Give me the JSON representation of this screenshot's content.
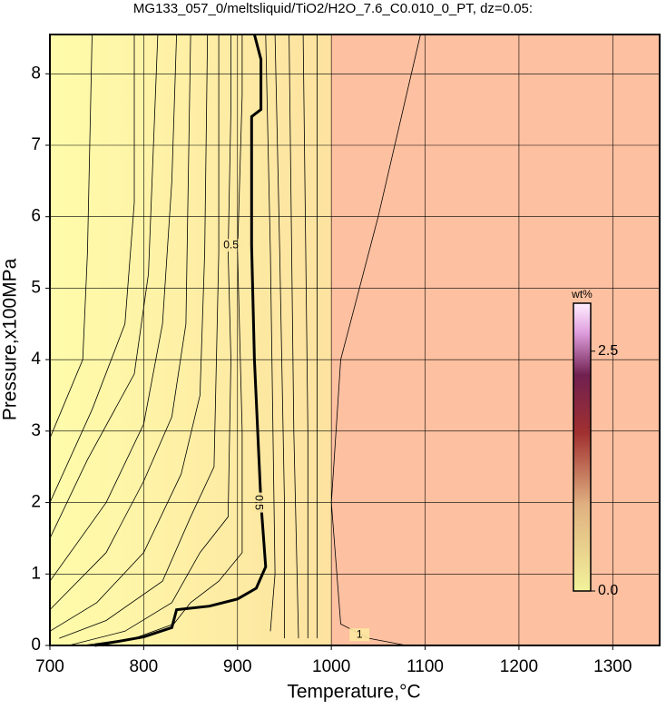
{
  "chart_data": {
    "type": "contour",
    "title": "MG133_057_0/meltsliquid/TiO2/H2O_7.6_C0.010_0_PT, dz=0.05:",
    "x_label": "Temperature,°C",
    "y_label": "Pressure,x100MPa",
    "xlim": [
      700,
      1350
    ],
    "ylim": [
      0,
      8.55
    ],
    "xticks": [
      700,
      800,
      900,
      1000,
      1100,
      1200,
      1300
    ],
    "yticks": [
      0,
      1,
      2,
      3,
      4,
      5,
      6,
      7,
      8
    ],
    "grid": true,
    "colorbar": {
      "label": "wt%",
      "clim": [
        0,
        3.0
      ],
      "ticks": [
        {
          "value": 0,
          "label": "0.0"
        },
        2.5
      ]
    },
    "contours": [
      {
        "level": 0.05,
        "x": [
          700,
          735,
          740,
          745
        ],
        "y": [
          2.9,
          4.0,
          5.5,
          8.55
        ]
      },
      {
        "level": 0.1,
        "x": [
          700,
          745,
          780,
          790,
          790
        ],
        "y": [
          2.0,
          3.3,
          4.5,
          6.2,
          8.55
        ]
      },
      {
        "level": 0.15,
        "x": [
          700,
          740,
          790,
          805,
          815
        ],
        "y": [
          1.5,
          2.6,
          3.8,
          5.2,
          8.55
        ]
      },
      {
        "level": 0.2,
        "x": [
          700,
          760,
          800,
          820,
          830,
          835
        ],
        "y": [
          0.9,
          2.0,
          3.1,
          4.5,
          6.5,
          8.55
        ]
      },
      {
        "level": 0.25,
        "x": [
          700,
          760,
          800,
          830,
          845,
          850
        ],
        "y": [
          0.5,
          1.3,
          2.3,
          3.2,
          4.5,
          8.55
        ]
      },
      {
        "level": 0.3,
        "x": [
          700,
          750,
          800,
          840,
          860,
          865,
          868
        ],
        "y": [
          0.2,
          0.6,
          1.3,
          2.4,
          3.5,
          5.5,
          8.55
        ]
      },
      {
        "level": 0.35,
        "x": [
          710,
          760,
          820,
          850,
          875,
          880,
          880
        ],
        "y": [
          0.1,
          0.35,
          0.9,
          1.8,
          2.5,
          5.5,
          8.55
        ]
      },
      {
        "level": 0.4,
        "x": [
          720,
          780,
          830,
          860,
          890,
          893,
          890,
          893,
          893
        ],
        "y": [
          0,
          0.2,
          0.6,
          1.3,
          1.8,
          4,
          5.5,
          7.5,
          8.55
        ]
      },
      {
        "level": 0.45,
        "x": [
          735,
          790,
          832,
          850,
          880,
          905,
          905,
          900,
          905,
          905
        ],
        "y": [
          0,
          0.1,
          0.3,
          0.6,
          0.9,
          1.3,
          3,
          5.5,
          7.7,
          8.55
        ]
      },
      {
        "level": 0.5,
        "bold": true,
        "x": [
          748,
          800,
          830,
          835,
          870,
          900,
          920,
          930,
          925,
          918,
          915,
          915,
          925,
          925,
          918
        ],
        "y": [
          0,
          0.12,
          0.25,
          0.5,
          0.55,
          0.65,
          0.8,
          1.1,
          2.0,
          4.0,
          5.6,
          7.4,
          7.5,
          8.2,
          8.55
        ]
      },
      {
        "level": 0.55,
        "x": [
          935,
          940,
          935,
          930
        ],
        "y": [
          0.2,
          1,
          5.5,
          8.55
        ]
      },
      {
        "level": 0.6,
        "x": [
          950,
          950,
          945,
          940
        ],
        "y": [
          0.1,
          2,
          5.5,
          8.55
        ]
      },
      {
        "level": 0.7,
        "x": [
          965,
          960,
          955
        ],
        "y": [
          0.1,
          3,
          8.55
        ]
      },
      {
        "level": 0.8,
        "x": [
          975,
          975,
          970
        ],
        "y": [
          0.1,
          3,
          8.55
        ]
      },
      {
        "level": 0.9,
        "x": [
          985,
          985,
          985
        ],
        "y": [
          0.1,
          3,
          8.55
        ]
      },
      {
        "level": 1,
        "x": [
          1095,
          1050,
          1010,
          1000,
          1010,
          1040,
          1080
        ],
        "y": [
          8.55,
          6,
          4,
          2,
          0.3,
          0.1,
          0
        ]
      }
    ],
    "contour_labels": [
      {
        "contour": 9,
        "x": 893,
        "y": 5.6,
        "angle": 0
      },
      {
        "contour": 9,
        "x": 922,
        "y": 2.0,
        "angle": 90
      },
      {
        "contour": 15,
        "x": 1030,
        "y": 0.15,
        "angle": 0
      }
    ]
  }
}
